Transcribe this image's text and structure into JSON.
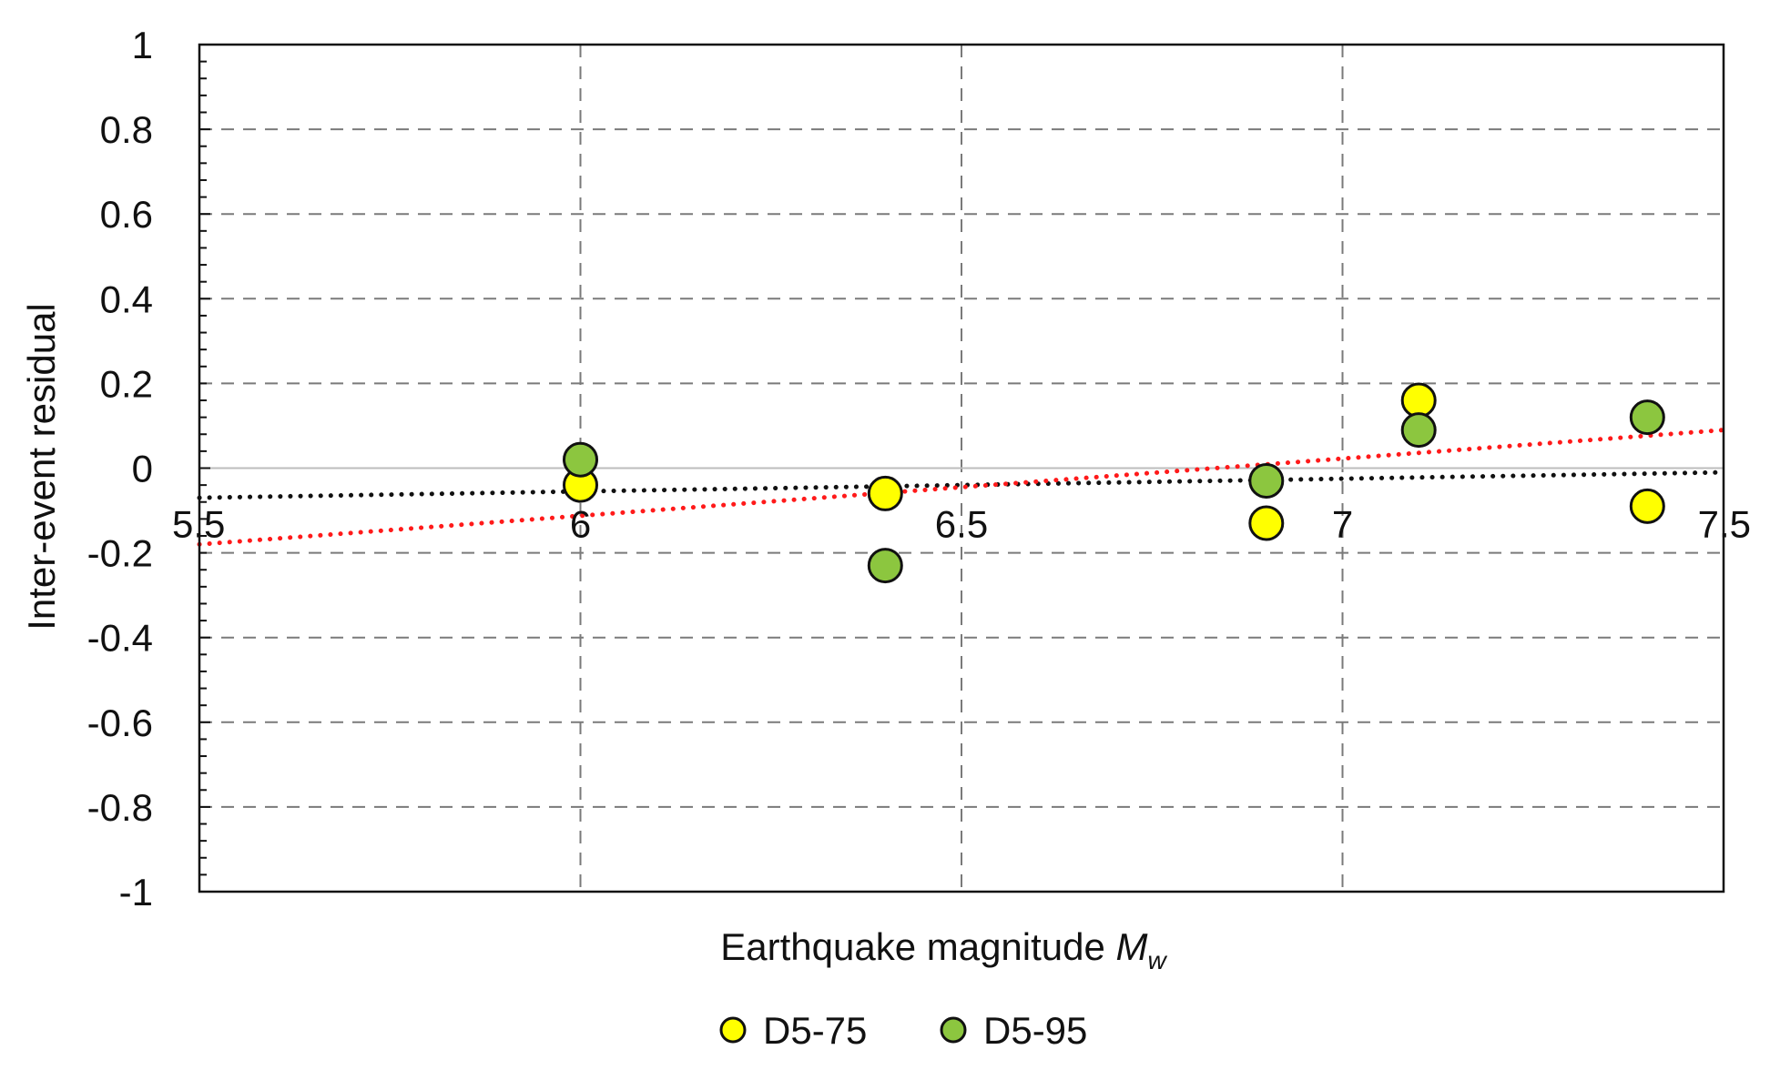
{
  "chart_data": {
    "type": "scatter",
    "title": "",
    "xlabel": "Earthquake magnitude",
    "xlabel_symbol": "M",
    "xlabel_subscript": "w",
    "ylabel": "Inter-event residual",
    "xlim": [
      5.5,
      7.5
    ],
    "ylim": [
      -1,
      1
    ],
    "x_ticks": [
      "5.5",
      "6",
      "6.5",
      "7",
      "7.5"
    ],
    "y_ticks": [
      "1",
      "0.8",
      "0.6",
      "0.4",
      "0.2",
      "0",
      "-0.2",
      "-0.4",
      "-0.6",
      "-0.8",
      "-1"
    ],
    "x_tick_labels_at": "y=0 line",
    "grid": true,
    "grid_style": "dashed",
    "legend_position": "bottom-center",
    "series": [
      {
        "name": "D5-75",
        "color": "#ffff00",
        "points": [
          [
            6.0,
            -0.04
          ],
          [
            6.4,
            -0.06
          ],
          [
            6.9,
            -0.13
          ],
          [
            7.1,
            0.16
          ],
          [
            7.4,
            -0.09
          ]
        ]
      },
      {
        "name": "D5-95",
        "color": "#8cc63f",
        "points": [
          [
            6.0,
            0.02
          ],
          [
            6.4,
            -0.23
          ],
          [
            6.9,
            -0.03
          ],
          [
            7.1,
            0.09
          ],
          [
            7.4,
            0.12
          ]
        ]
      }
    ],
    "trendlines": [
      {
        "color": "#111111",
        "style": "dotted",
        "points": [
          [
            5.5,
            -0.07
          ],
          [
            7.5,
            -0.01
          ]
        ]
      },
      {
        "color": "#ff1a1a",
        "style": "dotted",
        "points": [
          [
            5.5,
            -0.18
          ],
          [
            7.5,
            0.09
          ]
        ]
      }
    ]
  }
}
